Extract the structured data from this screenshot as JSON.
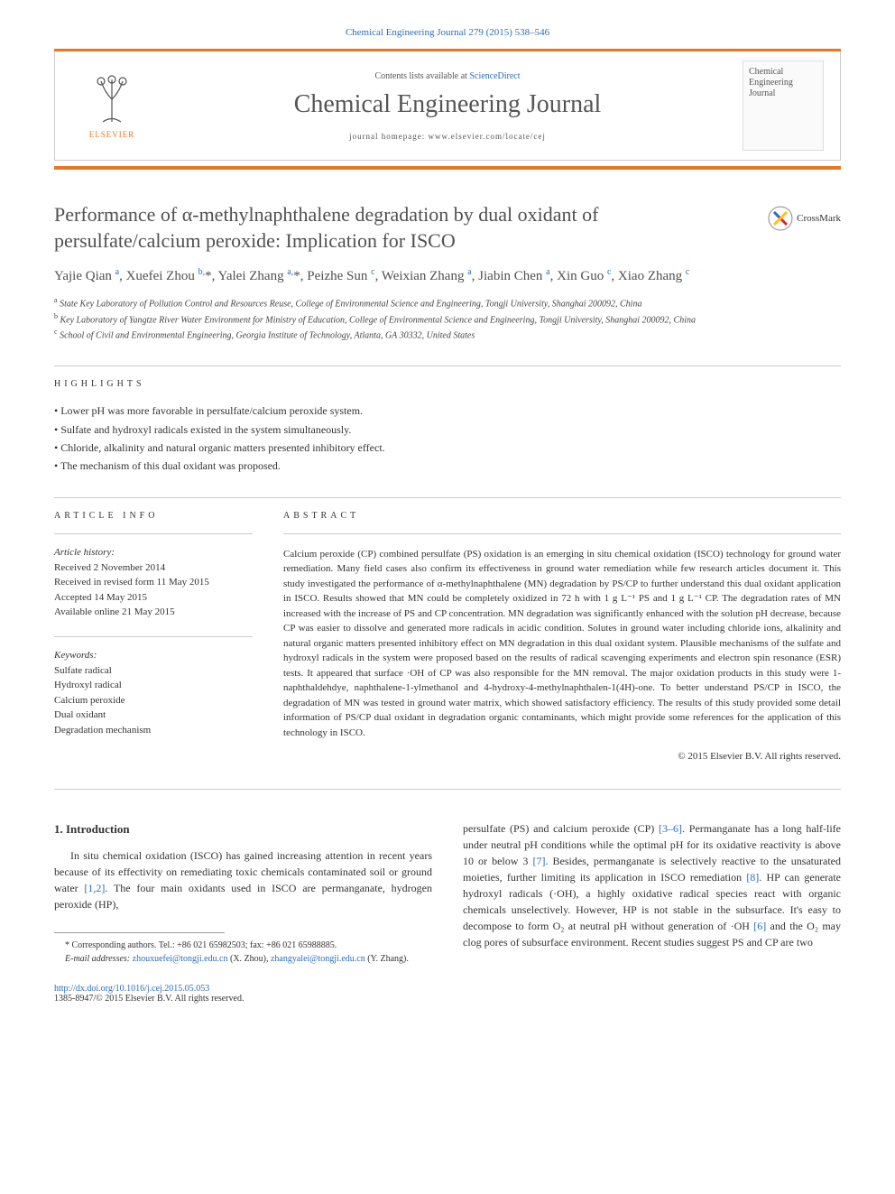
{
  "citation": "Chemical Engineering Journal 279 (2015) 538–546",
  "masthead": {
    "contents_prefix": "Contents lists available at ",
    "contents_link": "ScienceDirect",
    "journal": "Chemical Engineering Journal",
    "homepage_label": "journal homepage: ",
    "homepage_url": "www.elsevier.com/locate/cej",
    "publisher": "ELSEVIER",
    "cover_line1": "Chemical",
    "cover_line2": "Engineering",
    "cover_line3": "Journal"
  },
  "title": "Performance of α-methylnaphthalene degradation by dual oxidant of persulfate/calcium peroxide: Implication for ISCO",
  "crossmark": "CrossMark",
  "authors_html": "Yajie Qian <sup>a</sup>, Xuefei Zhou <sup>b,</sup>*, Yalei Zhang <sup>a,</sup>*, Peizhe Sun <sup>c</sup>, Weixian Zhang <sup>a</sup>, Jiabin Chen <sup>a</sup>, Xin Guo <sup>c</sup>, Xiao Zhang <sup>c</sup>",
  "affiliations": {
    "a": "State Key Laboratory of Pollution Control and Resources Reuse, College of Environmental Science and Engineering, Tongji University, Shanghai 200092, China",
    "b": "Key Laboratory of Yangtze River Water Environment for Ministry of Education, College of Environmental Science and Engineering, Tongji University, Shanghai 200092, China",
    "c": "School of Civil and Environmental Engineering, Georgia Institute of Technology, Atlanta, GA 30332, United States"
  },
  "highlights_label": "HIGHLIGHTS",
  "highlights": [
    "Lower pH was more favorable in persulfate/calcium peroxide system.",
    "Sulfate and hydroxyl radicals existed in the system simultaneously.",
    "Chloride, alkalinity and natural organic matters presented inhibitory effect.",
    "The mechanism of this dual oxidant was proposed."
  ],
  "info_label": "ARTICLE INFO",
  "abstract_label": "ABSTRACT",
  "history": {
    "head": "Article history:",
    "received": "Received 2 November 2014",
    "revised": "Received in revised form 11 May 2015",
    "accepted": "Accepted 14 May 2015",
    "online": "Available online 21 May 2015"
  },
  "keywords": {
    "head": "Keywords:",
    "items": [
      "Sulfate radical",
      "Hydroxyl radical",
      "Calcium peroxide",
      "Dual oxidant",
      "Degradation mechanism"
    ]
  },
  "abstract": "Calcium peroxide (CP) combined persulfate (PS) oxidation is an emerging in situ chemical oxidation (ISCO) technology for ground water remediation. Many field cases also confirm its effectiveness in ground water remediation while few research articles document it. This study investigated the performance of α-methylnaphthalene (MN) degradation by PS/CP to further understand this dual oxidant application in ISCO. Results showed that MN could be completely oxidized in 72 h with 1 g L⁻¹ PS and 1 g L⁻¹ CP. The degradation rates of MN increased with the increase of PS and CP concentration. MN degradation was significantly enhanced with the solution pH decrease, because CP was easier to dissolve and generated more radicals in acidic condition. Solutes in ground water including chloride ions, alkalinity and natural organic matters presented inhibitory effect on MN degradation in this dual oxidant system. Plausible mechanisms of the sulfate and hydroxyl radicals in the system were proposed based on the results of radical scavenging experiments and electron spin resonance (ESR) tests. It appeared that surface ·OH of CP was also responsible for the MN removal. The major oxidation products in this study were 1-naphthaldehdye, naphthalene-1-ylmethanol and 4-hydroxy-4-methylnaphthalen-1(4H)-one. To better understand PS/CP in ISCO, the degradation of MN was tested in ground water matrix, which showed satisfactory efficiency. The results of this study provided some detail information of PS/CP dual oxidant in degradation organic contaminants, which might provide some references for the application of this technology in ISCO.",
  "copyright": "© 2015 Elsevier B.V. All rights reserved.",
  "intro": {
    "heading": "1. Introduction",
    "left": "In situ chemical oxidation (ISCO) has gained increasing attention in recent years because of its effectivity on remediating toxic chemicals contaminated soil or ground water [1,2]. The four main oxidants used in ISCO are permanganate, hydrogen peroxide (HP),",
    "right": "persulfate (PS) and calcium peroxide (CP) [3–6]. Permanganate has a long half-life under neutral pH conditions while the optimal pH for its oxidative reactivity is above 10 or below 3 [7]. Besides, permanganate is selectively reactive to the unsaturated moieties, further limiting its application in ISCO remediation [8]. HP can generate hydroxyl radicals (·OH), a highly oxidative radical species react with organic chemicals unselectively. However, HP is not stable in the subsurface. It's easy to decompose to form O₂ at neutral pH without generation of ·OH [6] and the O₂ may clog pores of subsurface environment. Recent studies suggest PS and CP are two"
  },
  "footnotes": {
    "corr": "* Corresponding authors. Tel.: +86 021 65982503; fax: +86 021 65988885.",
    "emails_label": "E-mail addresses: ",
    "email1": "zhouxuefei@tongji.edu.cn",
    "email1_who": " (X. Zhou), ",
    "email2": "zhangyalei@tongji.edu.cn",
    "email2_who": " (Y. Zhang)."
  },
  "footer": {
    "doi": "http://dx.doi.org/10.1016/j.cej.2015.05.053",
    "issn": "1385-8947/© 2015 Elsevier B.V. All rights reserved."
  },
  "colors": {
    "accent": "#e87722",
    "link": "#2a6ebb",
    "text": "#333333"
  }
}
